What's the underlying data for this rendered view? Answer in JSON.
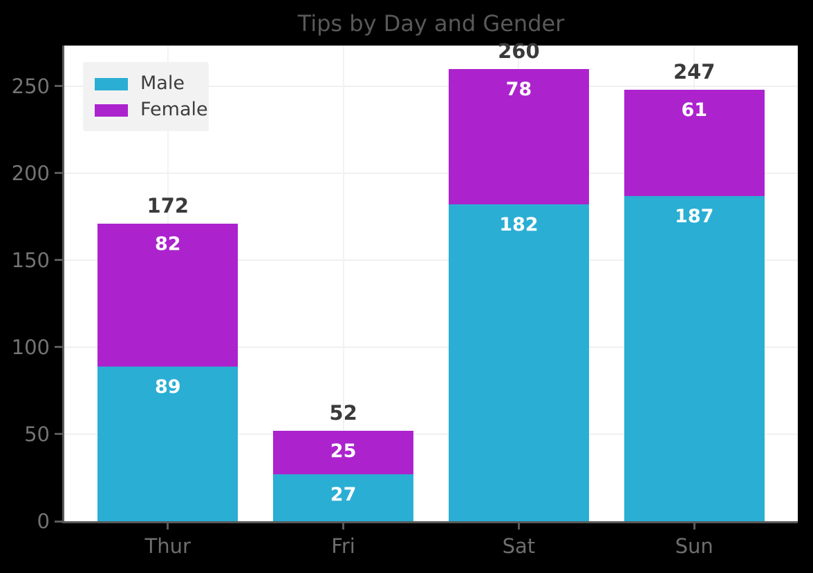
{
  "figure": {
    "title": "Tips by Day and Gender"
  },
  "chart_data": {
    "type": "bar",
    "stacked": true,
    "title": "Tips by Day and Gender",
    "categories": [
      "Thur",
      "Fri",
      "Sat",
      "Sun"
    ],
    "series": [
      {
        "name": "Male",
        "color": "#2aaed4",
        "values": [
          89,
          27,
          182,
          187
        ]
      },
      {
        "name": "Female",
        "color": "#ac23ce",
        "values": [
          82,
          25,
          78,
          61
        ]
      }
    ],
    "totals": [
      172,
      52,
      260,
      247
    ],
    "xlabel": "",
    "ylabel": "",
    "y_ticks": [
      0,
      50,
      100,
      150,
      200,
      250
    ],
    "ylim": [
      0,
      273.4
    ],
    "grid": true,
    "legend_position": "upper left",
    "colors": {
      "figure_background": "#000000",
      "plot_background": "#ffffff",
      "male": "#2aaed4",
      "female": "#ac23ce"
    }
  }
}
